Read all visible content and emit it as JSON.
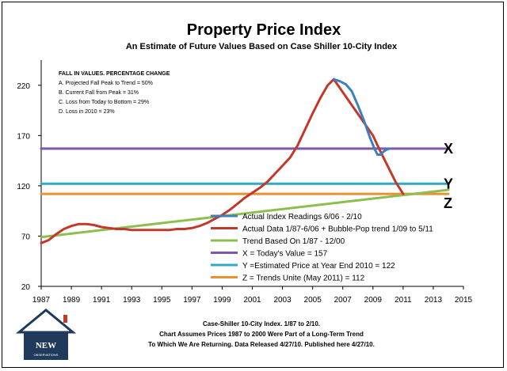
{
  "chart_data": {
    "type": "line",
    "title": "Property Price Index",
    "subtitle": "An Estimate of Future Values Based on Case Shiller 10-City Index",
    "xlim": [
      1987,
      2015
    ],
    "ylim": [
      20,
      245
    ],
    "x_ticks": [
      1987,
      1989,
      1991,
      1993,
      1995,
      1997,
      1999,
      2001,
      2003,
      2005,
      2007,
      2009,
      2011,
      2013,
      2015
    ],
    "y_ticks": [
      20,
      70,
      120,
      170,
      220
    ],
    "grid": false,
    "legend_position": "lower-right",
    "notes": {
      "heading": "FALL IN VALUES. PERCENTAGE CHANGE",
      "lines": [
        "A. Projected Fall Peak to Trend = 50%",
        "B. Current Fall from Peak = 31%",
        "C. Loss from Today to Bottom = 29%",
        "D. Loss in 2010 = 23%"
      ]
    },
    "series": [
      {
        "name": "Actual Index Readings 6/06 - 2/10",
        "color": "#3f7fbf",
        "points": [
          [
            2006.4,
            226
          ],
          [
            2006.8,
            224
          ],
          [
            2007.2,
            221
          ],
          [
            2007.6,
            214
          ],
          [
            2008.0,
            200
          ],
          [
            2008.4,
            185
          ],
          [
            2008.8,
            168
          ],
          [
            2009.1,
            157
          ],
          [
            2009.3,
            151
          ],
          [
            2009.5,
            151
          ],
          [
            2009.7,
            154
          ],
          [
            2009.9,
            156
          ],
          [
            2010.1,
            157
          ]
        ]
      },
      {
        "name": "Actual Data 1/87-6/06 + Bubble-Pop trend 1/09 to 5/11",
        "color": "#c0392b",
        "points": [
          [
            1987.0,
            63
          ],
          [
            1987.5,
            66
          ],
          [
            1988.0,
            72
          ],
          [
            1988.5,
            77
          ],
          [
            1989.0,
            80
          ],
          [
            1989.5,
            82
          ],
          [
            1990.0,
            82
          ],
          [
            1990.5,
            81
          ],
          [
            1991.0,
            79
          ],
          [
            1991.5,
            78
          ],
          [
            1992.0,
            77
          ],
          [
            1992.5,
            77
          ],
          [
            1993.0,
            76
          ],
          [
            1993.5,
            76
          ],
          [
            1994.0,
            76
          ],
          [
            1994.5,
            76
          ],
          [
            1995.0,
            76
          ],
          [
            1995.5,
            76
          ],
          [
            1996.0,
            77
          ],
          [
            1996.5,
            77
          ],
          [
            1997.0,
            78
          ],
          [
            1997.5,
            80
          ],
          [
            1998.0,
            83
          ],
          [
            1998.5,
            87
          ],
          [
            1999.0,
            91
          ],
          [
            1999.5,
            96
          ],
          [
            2000.0,
            102
          ],
          [
            2000.5,
            108
          ],
          [
            2001.0,
            113
          ],
          [
            2001.5,
            118
          ],
          [
            2002.0,
            124
          ],
          [
            2002.5,
            132
          ],
          [
            2003.0,
            140
          ],
          [
            2003.5,
            148
          ],
          [
            2004.0,
            160
          ],
          [
            2004.5,
            176
          ],
          [
            2005.0,
            192
          ],
          [
            2005.5,
            207
          ],
          [
            2006.0,
            220
          ],
          [
            2006.4,
            226
          ],
          [
            2009.0,
            170
          ],
          [
            2009.5,
            154
          ],
          [
            2010.0,
            139
          ],
          [
            2010.5,
            124
          ],
          [
            2011.0,
            112
          ]
        ]
      },
      {
        "name": "Trend Based On 1/87 - 12/00",
        "color": "#8cbf4f",
        "points": [
          [
            1987,
            69
          ],
          [
            2014,
            116
          ]
        ]
      },
      {
        "name": "X = Today's Value = 157",
        "color": "#7e57a6",
        "points": [
          [
            1987,
            157
          ],
          [
            2014,
            157
          ]
        ]
      },
      {
        "name": "Y =Estimated Price at Year End 2010 = 122",
        "color": "#33a8c4",
        "points": [
          [
            1987,
            122
          ],
          [
            2014,
            122
          ]
        ]
      },
      {
        "name": "Z = Trends Unite (May 2011) = 112",
        "color": "#e8912f",
        "points": [
          [
            1987,
            112
          ],
          [
            2014,
            112
          ]
        ]
      }
    ],
    "annotations": [
      {
        "label": "X",
        "y": 157
      },
      {
        "label": "Y",
        "y": 122
      },
      {
        "label": "Z",
        "y": 112
      }
    ],
    "footer": [
      "Case-Shiller 10-City Index.  1/87 to 2/10.",
      "Chart Assumes Prices 1987 to 2000 Were Part of a Long-Term Trend",
      "To Which We Are Returning. Data Released 4/27/10. Published  here 4/27/10."
    ]
  },
  "logo": {
    "text": "NEW",
    "subtext": "OBSERVATIONS",
    "color": "#1f3a5a",
    "accent": "#c0392b"
  }
}
